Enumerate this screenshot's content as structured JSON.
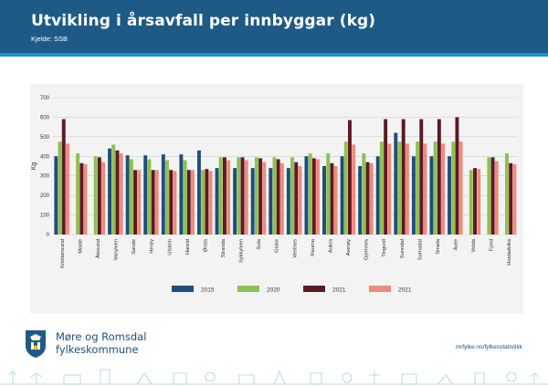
{
  "header": {
    "title": "Utvikling i årsavfall per innbyggar (kg)",
    "source": "Kjelde: SSB"
  },
  "footer": {
    "org_line1": "Møre og Romsdal",
    "org_line2": "fylkeskommune",
    "url": "mrfylke.no/fylkesstatistikk"
  },
  "colors": {
    "header_bg": "#1e5a86",
    "s2015": "#1f4e79",
    "s2020": "#8dc152",
    "s2021a": "#5c1a24",
    "s2021b": "#f08a7e"
  },
  "chart_data": {
    "type": "bar",
    "title": "Utvikling i årsavfall per innbyggar (kg)",
    "xlabel": "",
    "ylabel": "Kg",
    "ylim": [
      0,
      700
    ],
    "yticks": [
      0,
      100,
      200,
      300,
      400,
      500,
      600,
      700
    ],
    "grid": true,
    "legend_position": "bottom",
    "categories": [
      "Kristiansund",
      "Molde",
      "Ålesund",
      "Vanylven",
      "Sande",
      "Herøy",
      "Ulstein",
      "Hareid",
      "Ørsta",
      "Stranda",
      "Sykkylven",
      "Sula",
      "Giske",
      "Vestnes",
      "Rauma",
      "Aukra",
      "Averøy",
      "Gjemnes",
      "Tingvoll",
      "Sunndal",
      "Surnadal",
      "Smøla",
      "Aure",
      "Volda",
      "Fjord",
      "Hustadvika"
    ],
    "series": [
      {
        "name": "2015",
        "color": "#1f4e79",
        "values": [
          400,
          null,
          null,
          440,
          405,
          405,
          410,
          410,
          430,
          340,
          340,
          340,
          340,
          340,
          400,
          350,
          400,
          350,
          400,
          520,
          400,
          400,
          400,
          null,
          null,
          null
        ]
      },
      {
        "name": "2020",
        "color": "#8dc152",
        "values": [
          475,
          415,
          400,
          460,
          385,
          385,
          380,
          380,
          330,
          395,
          395,
          395,
          395,
          395,
          415,
          415,
          475,
          415,
          475,
          475,
          475,
          475,
          475,
          330,
          395,
          415
        ]
      },
      {
        "name": "2021",
        "color": "#5c1a24",
        "values": [
          590,
          365,
          395,
          430,
          330,
          330,
          330,
          330,
          335,
          395,
          395,
          390,
          385,
          370,
          390,
          365,
          585,
          370,
          590,
          590,
          590,
          590,
          600,
          340,
          395,
          365
        ]
      },
      {
        "name": "2021",
        "color": "#f08a7e",
        "values": [
          465,
          360,
          370,
          415,
          330,
          330,
          325,
          330,
          325,
          380,
          380,
          370,
          365,
          350,
          385,
          350,
          460,
          365,
          465,
          465,
          465,
          465,
          475,
          335,
          375,
          360
        ]
      }
    ]
  }
}
